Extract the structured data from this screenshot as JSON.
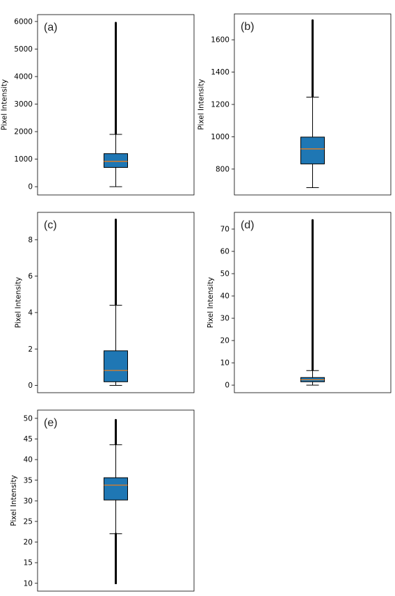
{
  "chart_data": [
    {
      "type": "boxplot",
      "panel_label": "(a)",
      "ylabel": "Pixel Intensity",
      "ylim": [
        -300,
        6250
      ],
      "yticks": [
        0,
        1000,
        2000,
        3000,
        4000,
        5000,
        6000
      ],
      "box": {
        "whisker_low": 0,
        "q1": 700,
        "median": 920,
        "q3": 1200,
        "whisker_high": 1900
      },
      "outliers": {
        "from": 1900,
        "to": 5950
      },
      "box_color": "#1f77b4",
      "median_color": "#ff7f0e"
    },
    {
      "type": "boxplot",
      "panel_label": "(b)",
      "ylabel": "Pixel Intensity",
      "ylim": [
        640,
        1760
      ],
      "yticks": [
        800,
        1000,
        1200,
        1400,
        1600
      ],
      "box": {
        "whisker_low": 685,
        "q1": 832,
        "median": 925,
        "q3": 998,
        "whisker_high": 1245
      },
      "outliers": {
        "from": 1245,
        "to": 1720
      },
      "box_color": "#1f77b4",
      "median_color": "#ff7f0e"
    },
    {
      "type": "boxplot",
      "panel_label": "(c)",
      "ylabel": "Pixel Intensity",
      "ylim": [
        -0.4,
        9.5
      ],
      "yticks": [
        0,
        2,
        4,
        6,
        8
      ],
      "box": {
        "whisker_low": 0,
        "q1": 0.2,
        "median": 0.82,
        "q3": 1.9,
        "whisker_high": 4.4
      },
      "outliers": {
        "from": 4.4,
        "to": 9.1
      },
      "box_color": "#1f77b4",
      "median_color": "#ff7f0e"
    },
    {
      "type": "boxplot",
      "panel_label": "(d)",
      "ylabel": "Pixel Intensity",
      "ylim": [
        -3.4,
        77.5
      ],
      "yticks": [
        0,
        10,
        20,
        30,
        40,
        50,
        60,
        70
      ],
      "box": {
        "whisker_low": 0,
        "q1": 1.5,
        "median": 2.4,
        "q3": 3.4,
        "whisker_high": 6.5
      },
      "outliers": {
        "from": 6.5,
        "to": 74
      },
      "box_color": "#1f77b4",
      "median_color": "#ff7f0e"
    },
    {
      "type": "boxplot",
      "panel_label": "(e)",
      "ylabel": "Pixel Intensity",
      "ylim": [
        8.1,
        52.0
      ],
      "yticks": [
        10,
        15,
        20,
        25,
        30,
        35,
        40,
        45,
        50
      ],
      "box": {
        "whisker_low": 22,
        "q1": 30.2,
        "median": 33.8,
        "q3": 35.6,
        "whisker_high": 43.6
      },
      "outliers": {
        "from": 43.6,
        "to": 49.6,
        "lower_from": 9.8,
        "lower_to": 22
      },
      "box_color": "#1f77b4",
      "median_color": "#ff7f0e"
    }
  ]
}
